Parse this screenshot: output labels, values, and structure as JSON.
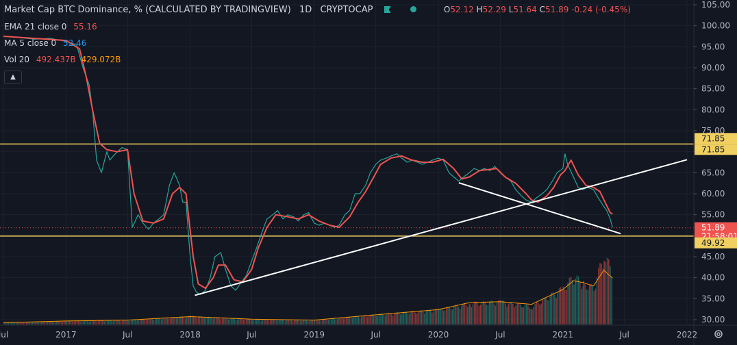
{
  "legend": {
    "title": "Market Cap BTC Dominance, % (CALCULATED BY TRADINGVIEW)",
    "interval": "1D",
    "exchange": "CRYPTOCAP",
    "ohlc": {
      "o_label": "O",
      "o": "52.12",
      "h_label": "H",
      "h": "52.29",
      "l_label": "L",
      "l": "51.64",
      "c_label": "C",
      "c": "51.89",
      "change": "-0.24 (-0.45%)"
    },
    "ema": {
      "label": "EMA 21 close 0",
      "value": "55.16",
      "color": "#ef5350"
    },
    "ma": {
      "label": "MA 5 close 0",
      "value": "52.46",
      "color": "#2196f3"
    },
    "vol": {
      "label": "Vol 20",
      "value": "492.437B",
      "ma_value": "429.072B",
      "color": "#ef5350",
      "ma_color": "#ff9800"
    },
    "collapse_icon": "chevron-up-icon"
  },
  "chart_data": {
    "type": "line",
    "y_ticks": [
      "105.00",
      "100.00",
      "95.00",
      "90.00",
      "85.00",
      "80.00",
      "75.00",
      "70.00",
      "65.00",
      "60.00",
      "55.00",
      "50.00",
      "45.00",
      "40.00",
      "35.00",
      "30.00"
    ],
    "y_range": [
      29.5,
      105.5
    ],
    "x_ticks": [
      "Jul",
      "2017",
      "Jul",
      "2018",
      "Jul",
      "2019",
      "Jul",
      "2020",
      "Jul",
      "2021",
      "Jul",
      "2022"
    ],
    "x_range": [
      "2016-07-01",
      "2022-01-01"
    ],
    "price_label": "51.89",
    "countdown": "21:58:01",
    "horizontal_levels": [
      {
        "value": 71.85,
        "label": "71.85",
        "color": "#f0d060"
      },
      {
        "value": 49.92,
        "label": "49.92",
        "color": "#f0d060"
      }
    ],
    "trendlines": [
      {
        "from": [
          "2018-01-15",
          35.8
        ],
        "to": [
          "2022-01-01",
          68.1
        ],
        "color": "#ffffff"
      },
      {
        "from": [
          "2020-03-01",
          62.6
        ],
        "to": [
          "2021-06-20",
          50.5
        ],
        "color": "#ffffff"
      }
    ],
    "series": [
      {
        "x": [
          "2016-07-01",
          "2016-08-15",
          "2016-10-01",
          "2016-11-15",
          "2017-01-01",
          "2017-02-01",
          "2017-02-20",
          "2017-03-10",
          "2017-03-20",
          "2017-04-01",
          "2017-04-15",
          "2017-05-01",
          "2017-05-10",
          "2017-05-20",
          "2017-06-01",
          "2017-06-15",
          "2017-07-01",
          "2017-07-15",
          "2017-08-01",
          "2017-08-15",
          "2017-09-01",
          "2017-09-15",
          "2017-10-01",
          "2017-10-15",
          "2017-11-01",
          "2017-11-15",
          "2017-12-01",
          "2017-12-10",
          "2017-12-20",
          "2018-01-01",
          "2018-01-10",
          "2018-01-20",
          "2018-02-01",
          "2018-02-15",
          "2018-03-01",
          "2018-03-15",
          "2018-04-01",
          "2018-04-15",
          "2018-05-01",
          "2018-05-15",
          "2018-06-01",
          "2018-06-15",
          "2018-07-01",
          "2018-07-15",
          "2018-08-01",
          "2018-08-15",
          "2018-09-01",
          "2018-09-15",
          "2018-10-01",
          "2018-10-15",
          "2018-11-01",
          "2018-11-15",
          "2018-12-01",
          "2018-12-15",
          "2019-01-01",
          "2019-01-15",
          "2019-02-01",
          "2019-02-15",
          "2019-03-01",
          "2019-03-15",
          "2019-04-01",
          "2019-04-15",
          "2019-05-01",
          "2019-05-15",
          "2019-06-01",
          "2019-06-15",
          "2019-07-01",
          "2019-07-15",
          "2019-08-01",
          "2019-08-15",
          "2019-09-01",
          "2019-09-15",
          "2019-10-01",
          "2019-10-15",
          "2019-11-01",
          "2019-11-15",
          "2019-12-01",
          "2019-12-15",
          "2020-01-01",
          "2020-01-15",
          "2020-02-01",
          "2020-02-15",
          "2020-03-01",
          "2020-03-15",
          "2020-04-01",
          "2020-04-15",
          "2020-05-01",
          "2020-05-15",
          "2020-06-01",
          "2020-06-15",
          "2020-07-01",
          "2020-07-15",
          "2020-08-01",
          "2020-08-15",
          "2020-09-01",
          "2020-09-15",
          "2020-10-01",
          "2020-10-15",
          "2020-11-01",
          "2020-11-15",
          "2020-12-01",
          "2020-12-15",
          "2021-01-01",
          "2021-01-07",
          "2021-01-15",
          "2021-02-01",
          "2021-02-15",
          "2021-03-01",
          "2021-03-15",
          "2021-04-01",
          "2021-04-15",
          "2021-05-01",
          "2021-05-10",
          "2021-05-20",
          "2021-05-27"
        ],
        "values": [
          97.5,
          97.2,
          96.8,
          97.0,
          96.3,
          95.5,
          90.0,
          86.0,
          80.0,
          68.0,
          65.0,
          70.0,
          68.0,
          69.0,
          70.0,
          71.0,
          70.5,
          52.0,
          55.0,
          53.0,
          51.5,
          53.0,
          54.0,
          55.0,
          62.0,
          65.0,
          62.0,
          58.0,
          58.0,
          45.0,
          38.0,
          36.5,
          36.0,
          37.0,
          40.0,
          45.0,
          46.0,
          42.0,
          38.0,
          37.0,
          39.0,
          40.5,
          44.0,
          47.0,
          51.0,
          54.0,
          55.0,
          56.0,
          54.0,
          55.0,
          54.5,
          53.5,
          55.0,
          55.5,
          53.0,
          52.5,
          53.0,
          52.5,
          52.0,
          52.5,
          55.0,
          56.0,
          60.0,
          60.0,
          62.0,
          65.0,
          67.0,
          68.0,
          68.5,
          69.0,
          69.5,
          68.5,
          67.5,
          68.0,
          67.5,
          67.0,
          67.5,
          68.0,
          68.5,
          68.0,
          65.0,
          64.0,
          63.0,
          64.0,
          65.0,
          66.0,
          65.5,
          66.0,
          65.5,
          66.5,
          65.0,
          64.0,
          63.0,
          61.0,
          59.5,
          58.5,
          58.0,
          59.0,
          60.0,
          61.0,
          63.0,
          65.0,
          66.0,
          69.5,
          67.0,
          64.0,
          61.5,
          61.0,
          61.5,
          61.0,
          59.0,
          57.0,
          56.0,
          54.0,
          52.0
        ],
        "color": "#26a69a"
      },
      {
        "name": "EMA 21",
        "x": [
          "2016-07-01",
          "2016-10-01",
          "2017-01-01",
          "2017-02-10",
          "2017-03-01",
          "2017-03-20",
          "2017-04-10",
          "2017-05-01",
          "2017-06-01",
          "2017-07-01",
          "2017-07-20",
          "2017-08-15",
          "2017-09-15",
          "2017-10-15",
          "2017-11-10",
          "2017-12-01",
          "2017-12-20",
          "2018-01-10",
          "2018-01-25",
          "2018-02-15",
          "2018-03-10",
          "2018-03-25",
          "2018-04-15",
          "2018-05-10",
          "2018-06-05",
          "2018-07-01",
          "2018-07-20",
          "2018-08-15",
          "2018-09-10",
          "2018-10-15",
          "2018-11-15",
          "2018-12-15",
          "2019-01-15",
          "2019-02-15",
          "2019-03-15",
          "2019-04-15",
          "2019-05-10",
          "2019-06-01",
          "2019-06-25",
          "2019-07-15",
          "2019-08-15",
          "2019-09-15",
          "2019-10-15",
          "2019-11-15",
          "2019-12-15",
          "2020-01-15",
          "2020-02-15",
          "2020-03-10",
          "2020-04-01",
          "2020-05-01",
          "2020-06-01",
          "2020-06-20",
          "2020-07-15",
          "2020-08-15",
          "2020-09-15",
          "2020-10-01",
          "2020-10-20",
          "2020-11-15",
          "2020-12-05",
          "2020-12-25",
          "2021-01-07",
          "2021-01-25",
          "2021-02-15",
          "2021-03-10",
          "2021-04-01",
          "2021-04-20",
          "2021-05-05",
          "2021-05-20",
          "2021-05-27"
        ],
        "values": [
          97.5,
          97.0,
          96.5,
          94.5,
          88.0,
          80.0,
          72.0,
          70.5,
          70.0,
          70.5,
          60.0,
          53.5,
          53.0,
          54.0,
          60.0,
          61.5,
          60.0,
          45.0,
          38.5,
          37.5,
          40.0,
          43.0,
          43.0,
          39.5,
          39.0,
          42.0,
          47.0,
          52.0,
          55.0,
          54.5,
          54.0,
          55.0,
          53.5,
          52.5,
          52.0,
          54.5,
          58.0,
          60.5,
          64.0,
          67.0,
          68.5,
          69.0,
          68.0,
          67.5,
          67.5,
          68.2,
          66.0,
          63.5,
          64.0,
          65.5,
          65.8,
          66.0,
          64.0,
          62.5,
          60.0,
          58.5,
          58.0,
          59.5,
          61.5,
          64.5,
          65.5,
          68.0,
          64.5,
          62.0,
          61.5,
          60.5,
          58.0,
          55.5,
          55.16
        ],
        "color": "#ef5350"
      }
    ],
    "volume": {
      "x": [
        "2016-07-01",
        "2017-01-01",
        "2017-07-01",
        "2018-01-01",
        "2018-07-01",
        "2019-01-01",
        "2019-07-01",
        "2020-01-01",
        "2020-04-01",
        "2020-07-01",
        "2020-10-01",
        "2021-01-01",
        "2021-02-01",
        "2021-03-01",
        "2021-04-01",
        "2021-05-01",
        "2021-05-27"
      ],
      "values": [
        0.2,
        0.4,
        0.5,
        1.0,
        0.6,
        0.5,
        1.2,
        1.8,
        2.6,
        2.8,
        2.2,
        4.5,
        6.0,
        5.0,
        4.5,
        9.0,
        6.0
      ],
      "ma_values": [
        0.2,
        0.4,
        0.5,
        0.9,
        0.6,
        0.5,
        1.1,
        1.7,
        2.5,
        2.6,
        2.3,
        4.0,
        5.0,
        4.8,
        4.4,
        6.2,
        5.3
      ],
      "color": "#a33a3a",
      "ma_color": "#ff9800"
    }
  }
}
